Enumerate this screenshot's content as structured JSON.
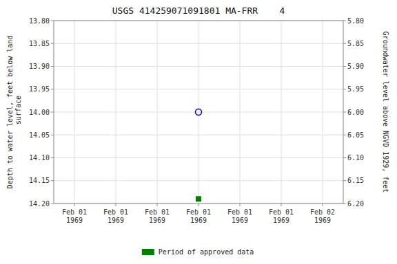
{
  "chart_data": {
    "type": "scatter",
    "title": "USGS 414259071091801 MA-FRR    4",
    "y_label": "Depth to water level, feet below land\n surface",
    "y2_label": "Groundwater level above NGVD 1929, feet",
    "categories": [
      "Feb 01\n1969",
      "Feb 01\n1969",
      "Feb 01\n1969",
      "Feb 01\n1969",
      "Feb 01\n1969",
      "Feb 01\n1969",
      "Feb 02\n1969"
    ],
    "series": [
      {
        "color": "#0000cc",
        "marker": "circle",
        "values": [
          null,
          null,
          null,
          14.0,
          null,
          null,
          null
        ]
      },
      {
        "name": "Period of approved data",
        "color": "#008000",
        "marker": "square",
        "values": [
          null,
          null,
          null,
          14.19,
          null,
          null,
          null
        ]
      }
    ],
    "ylim": [
      14.2,
      13.8
    ],
    "yticks": [
      {
        "value": 13.8,
        "label": "13.80"
      },
      {
        "value": 13.85,
        "label": "13.85"
      },
      {
        "value": 13.9,
        "label": "13.90"
      },
      {
        "value": 13.95,
        "label": "13.95"
      },
      {
        "value": 14.0,
        "label": "14.00"
      },
      {
        "value": 14.05,
        "label": "14.05"
      },
      {
        "value": 14.1,
        "label": "14.10"
      },
      {
        "value": 14.15,
        "label": "14.15"
      },
      {
        "value": 14.2,
        "label": "14.20"
      }
    ],
    "y2lim": [
      6.2,
      5.8
    ],
    "y2ticks": [
      {
        "value": 6.2,
        "label": "6.20"
      },
      {
        "value": 6.15,
        "label": "6.15"
      },
      {
        "value": 6.1,
        "label": "6.10"
      },
      {
        "value": 6.05,
        "label": "6.05"
      },
      {
        "value": 6.0,
        "label": "6.00"
      },
      {
        "value": 5.95,
        "label": "5.95"
      },
      {
        "value": 5.9,
        "label": "5.90"
      },
      {
        "value": 5.85,
        "label": "5.85"
      },
      {
        "value": 5.8,
        "label": "5.80"
      }
    ],
    "grid": true,
    "legend": "bottom"
  }
}
